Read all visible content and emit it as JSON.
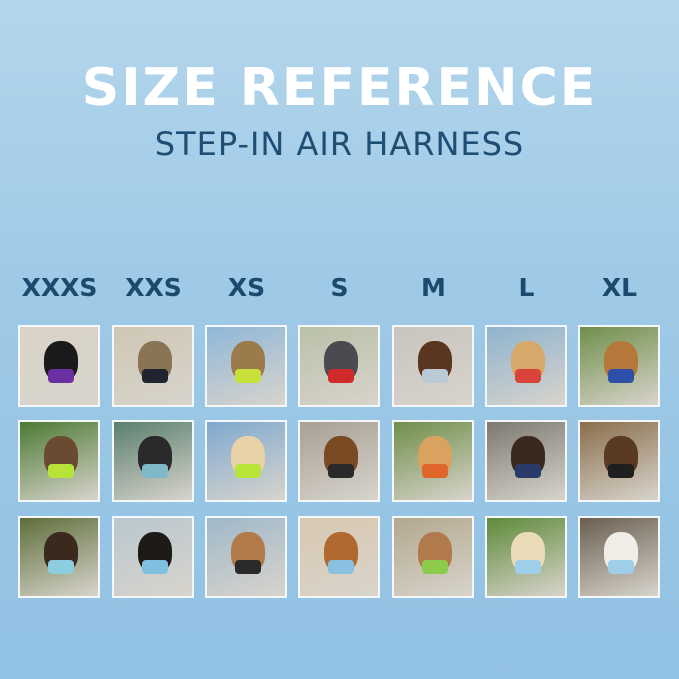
{
  "header": {
    "title": "SIZE REFERENCE",
    "subtitle": "STEP-IN AIR HARNESS"
  },
  "sizes": [
    "XXXS",
    "XXS",
    "XS",
    "S",
    "M",
    "L",
    "XL"
  ],
  "colors": {
    "title": "#ffffff",
    "subtitle": "#1e4e74",
    "size_label": "#1b4a6f",
    "background": "#9fcae7"
  },
  "photos": [
    [
      {
        "pet": "#1a1a1a",
        "harness": "#6a2fa0",
        "bg": "#d9d3c8"
      },
      {
        "pet": "#8a7456",
        "harness": "#1f2430",
        "bg": "#cfc7b5"
      },
      {
        "pet": "#9b7a4c",
        "harness": "#c8e03a",
        "bg": "#8fb7d8"
      },
      {
        "pet": "#4a4a4f",
        "harness": "#d02a2a",
        "bg": "#b9c0a8"
      },
      {
        "pet": "#5a3520",
        "harness": "#b9c9d6",
        "bg": "#c9c4bd"
      },
      {
        "pet": "#d6a86a",
        "harness": "#d8443a",
        "bg": "#8fb3cf"
      },
      {
        "pet": "#b5783a",
        "harness": "#2d4fa8",
        "bg": "#6f8f4a"
      }
    ],
    [
      {
        "pet": "#6a4a30",
        "harness": "#b8e43a",
        "bg": "#4c7a34"
      },
      {
        "pet": "#2a2a2a",
        "harness": "#7fb8c8",
        "bg": "#5a7f6e"
      },
      {
        "pet": "#e8d2a8",
        "harness": "#b8e43a",
        "bg": "#7fa9cf"
      },
      {
        "pet": "#7a4a25",
        "harness": "#2a2a2a",
        "bg": "#a8a095"
      },
      {
        "pet": "#d9a35f",
        "harness": "#e0652a",
        "bg": "#6f8f4a"
      },
      {
        "pet": "#3a2a1e",
        "harness": "#2a3a6a",
        "bg": "#7c7a70"
      },
      {
        "pet": "#5a3a22",
        "harness": "#1f1f1f",
        "bg": "#8a6e4c"
      }
    ],
    [
      {
        "pet": "#3a2a1e",
        "harness": "#8ccde0",
        "bg": "#5e6e3a"
      },
      {
        "pet": "#1e1a18",
        "harness": "#7fc0e0",
        "bg": "#b9c7cf"
      },
      {
        "pet": "#b07a4a",
        "harness": "#2a2a2a",
        "bg": "#9fb8c9"
      },
      {
        "pet": "#b06a30",
        "harness": "#8ac0e0",
        "bg": "#d8c8b0"
      },
      {
        "pet": "#b07a4c",
        "harness": "#8ccc4a",
        "bg": "#b3a88f"
      },
      {
        "pet": "#eadbb8",
        "harness": "#9fd0ea",
        "bg": "#5e8a3a"
      },
      {
        "pet": "#f0ece6",
        "harness": "#9fcfe8",
        "bg": "#6a5f50"
      }
    ]
  ]
}
